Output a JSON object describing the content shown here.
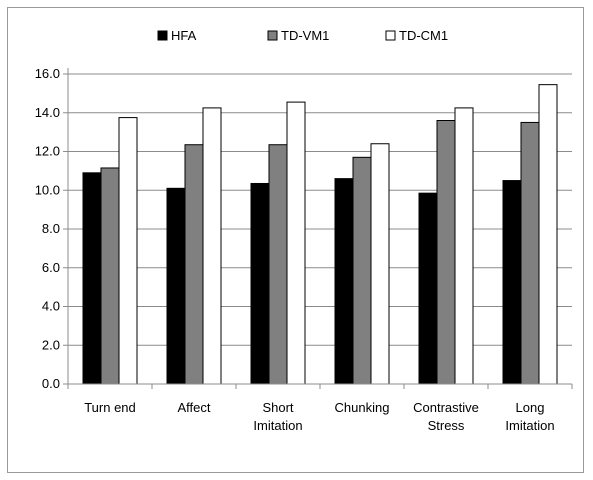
{
  "chart_data": {
    "type": "bar",
    "categories": [
      [
        "Turn end"
      ],
      [
        "Affect"
      ],
      [
        "Short",
        "Imitation"
      ],
      [
        "Chunking"
      ],
      [
        "Contrastive",
        "Stress"
      ],
      [
        "Long",
        "Imitation"
      ]
    ],
    "series": [
      {
        "name": "HFA",
        "color": "#000000",
        "values": [
          10.9,
          10.1,
          10.35,
          10.6,
          9.85,
          10.5
        ]
      },
      {
        "name": "TD-VM1",
        "color": "#808080",
        "values": [
          11.15,
          12.35,
          12.35,
          11.7,
          13.6,
          13.5
        ]
      },
      {
        "name": "TD-CM1",
        "color": "#ffffff",
        "values": [
          13.75,
          14.25,
          14.55,
          12.4,
          14.25,
          15.45
        ]
      }
    ],
    "y_ticks": [
      "0.0",
      "2.0",
      "4.0",
      "6.0",
      "8.0",
      "10.0",
      "12.0",
      "14.0",
      "16.0"
    ],
    "ylim": [
      0,
      16
    ],
    "grid": true,
    "legend_position": "top"
  }
}
